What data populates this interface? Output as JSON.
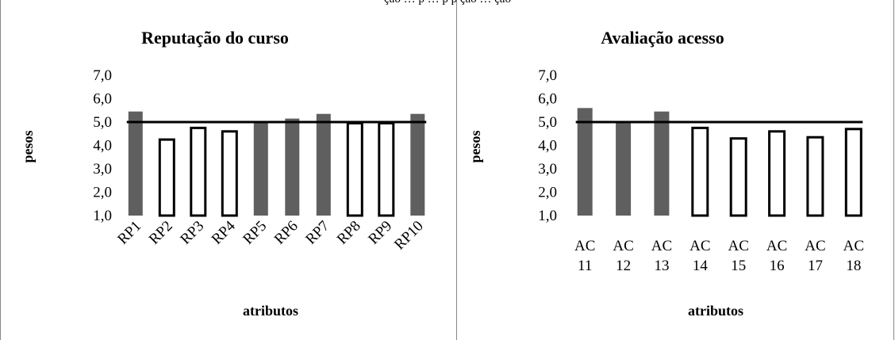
{
  "caption_fragment": "ção … p … p p ção … ção",
  "chart_data": [
    {
      "type": "bar",
      "title": "Reputação do curso",
      "xlabel": "atributos",
      "ylabel": "pesos",
      "ylim": [
        1.0,
        7.0
      ],
      "yticks": [
        "1,0",
        "2,0",
        "3,0",
        "4,0",
        "5,0",
        "6,0",
        "7,0"
      ],
      "categories": [
        "RP1",
        "RP2",
        "RP3",
        "RP4",
        "RP5",
        "RP6",
        "RP7",
        "RP8",
        "RP9",
        "RP10"
      ],
      "values": [
        5.45,
        4.25,
        4.75,
        4.6,
        5.0,
        5.15,
        5.35,
        4.95,
        4.95,
        5.35
      ],
      "reference_line": 5.0,
      "styles": [
        "filled",
        "outline",
        "outline",
        "outline",
        "filled",
        "filled",
        "filled",
        "outline",
        "outline",
        "filled"
      ],
      "colors": {
        "filled": "#5f5f5f",
        "outline": "#000000",
        "line": "#000000"
      },
      "grid": false,
      "tick_label_rotation": "diagonal"
    },
    {
      "type": "bar",
      "title": "Avaliação acesso",
      "xlabel": "atributos",
      "ylabel": "pesos",
      "ylim": [
        1.0,
        7.0
      ],
      "yticks": [
        "1,0",
        "2,0",
        "3,0",
        "4,0",
        "5,0",
        "6,0",
        "7,0"
      ],
      "categories": [
        [
          "AC",
          "11"
        ],
        [
          "AC",
          "12"
        ],
        [
          "AC",
          "13"
        ],
        [
          "AC",
          "14"
        ],
        [
          "AC",
          "15"
        ],
        [
          "AC",
          "16"
        ],
        [
          "AC",
          "17"
        ],
        [
          "AC",
          "18"
        ]
      ],
      "values": [
        5.6,
        5.0,
        5.45,
        4.75,
        4.3,
        4.6,
        4.35,
        4.7
      ],
      "reference_line": 5.0,
      "styles": [
        "filled",
        "filled",
        "filled",
        "outline",
        "outline",
        "outline",
        "outline",
        "outline"
      ],
      "colors": {
        "filled": "#5f5f5f",
        "outline": "#000000",
        "line": "#000000"
      },
      "grid": false,
      "tick_label_rotation": "none"
    }
  ]
}
